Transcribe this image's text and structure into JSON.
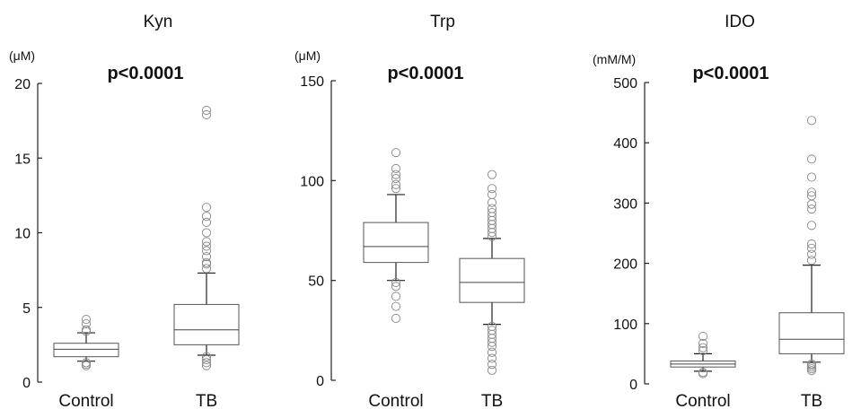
{
  "chart_data": [
    {
      "type": "box",
      "title": "Kyn",
      "ylabel": "(μM)",
      "annotation": "p<0.0001",
      "ylim": [
        0,
        20
      ],
      "yticks": [
        0,
        5,
        10,
        15,
        20
      ],
      "categories": [
        "Control",
        "TB"
      ],
      "boxes": [
        {
          "category": "Control",
          "whisker_low": 1.4,
          "q1": 1.7,
          "median": 2.2,
          "q3": 2.6,
          "whisker_high": 3.3,
          "outliers": [
            1.1,
            1.2,
            1.3,
            3.4,
            3.5,
            3.9,
            4.2
          ]
        },
        {
          "category": "TB",
          "whisker_low": 1.8,
          "q1": 2.5,
          "median": 3.5,
          "q3": 5.2,
          "whisker_high": 7.3,
          "outliers": [
            1.1,
            1.3,
            1.5,
            1.7,
            7.6,
            7.9,
            8.0,
            8.4,
            8.8,
            9.1,
            9.4,
            10.0,
            10.7,
            11.1,
            11.7,
            17.9,
            18.2
          ]
        }
      ]
    },
    {
      "type": "box",
      "title": "Trp",
      "ylabel": "(μM)",
      "annotation": "p<0.0001",
      "ylim": [
        0,
        150
      ],
      "yticks": [
        0,
        50,
        100,
        150
      ],
      "categories": [
        "Control",
        "TB"
      ],
      "boxes": [
        {
          "category": "Control",
          "whisker_low": 50,
          "q1": 59,
          "median": 67,
          "q3": 79,
          "whisker_high": 93,
          "outliers": [
            31,
            37,
            42,
            47,
            49,
            96,
            98,
            101,
            103,
            106,
            114
          ]
        },
        {
          "category": "TB",
          "whisker_low": 28,
          "q1": 39,
          "median": 49,
          "q3": 61,
          "whisker_high": 71,
          "outliers": [
            5,
            8,
            11,
            14,
            17,
            19,
            21,
            23,
            25,
            27,
            72,
            74,
            76,
            78,
            80,
            82,
            84,
            86,
            89,
            93,
            96,
            103
          ]
        }
      ]
    },
    {
      "type": "box",
      "title": "IDO",
      "ylabel": "(mM/M)",
      "annotation": "p<0.0001",
      "ylim": [
        0,
        500
      ],
      "yticks": [
        0,
        100,
        200,
        300,
        400,
        500
      ],
      "categories": [
        "Control",
        "TB"
      ],
      "boxes": [
        {
          "category": "Control",
          "whisker_low": 21,
          "q1": 28,
          "median": 33,
          "q3": 38,
          "whisker_high": 50,
          "outliers": [
            17,
            19,
            55,
            60,
            67,
            79
          ]
        },
        {
          "category": "TB",
          "whisker_low": 36,
          "q1": 50,
          "median": 74,
          "q3": 118,
          "whisker_high": 197,
          "outliers": [
            22,
            25,
            28,
            31,
            33,
            205,
            215,
            225,
            232,
            263,
            290,
            298,
            312,
            318,
            343,
            373,
            437
          ]
        }
      ]
    }
  ]
}
